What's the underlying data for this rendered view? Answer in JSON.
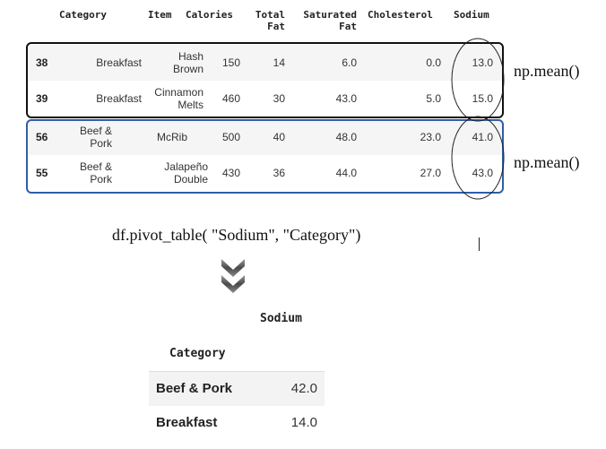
{
  "table": {
    "columns": [
      "Category",
      "Item",
      "Calories",
      "Total Fat",
      "Saturated Fat",
      "Cholesterol",
      "Sodium"
    ],
    "header_lines": {
      "category": "Category",
      "item": "Item",
      "calories": "Calories",
      "total_fat": [
        "Total",
        "Fat"
      ],
      "saturated_fat": [
        "Saturated",
        "Fat"
      ],
      "cholesterol": "Cholesterol",
      "sodium": "Sodium"
    },
    "rows": [
      {
        "index": "38",
        "category": [
          "Breakfast"
        ],
        "item": [
          "Hash",
          "Brown"
        ],
        "calories": "150",
        "total_fat": "14",
        "saturated_fat": "6.0",
        "cholesterol": "0.0",
        "sodium": "13.0"
      },
      {
        "index": "39",
        "category": [
          "Breakfast"
        ],
        "item": [
          "Cinnamon",
          "Melts"
        ],
        "calories": "460",
        "total_fat": "30",
        "saturated_fat": "43.0",
        "cholesterol": "5.0",
        "sodium": "15.0"
      },
      {
        "index": "56",
        "category": [
          "Beef &",
          "Pork"
        ],
        "item": [
          "McRib"
        ],
        "calories": "500",
        "total_fat": "40",
        "saturated_fat": "48.0",
        "cholesterol": "23.0",
        "sodium": "41.0"
      },
      {
        "index": "55",
        "category": [
          "Beef &",
          "Pork"
        ],
        "item": [
          "Jalapeño",
          "Double"
        ],
        "calories": "430",
        "total_fat": "36",
        "saturated_fat": "44.0",
        "cholesterol": "27.0",
        "sodium": "43.0"
      }
    ]
  },
  "groups": [
    {
      "rows": [
        "38",
        "39"
      ],
      "annotation": "np.mean()",
      "border_color": "#111111"
    },
    {
      "rows": [
        "56",
        "55"
      ],
      "annotation": "np.mean()",
      "border_color": "#2f5ea8"
    }
  ],
  "code": "df.pivot_table( \"Sodium\", \"Category\")",
  "arrow_icon": "double-chevron-down-icon",
  "pivot": {
    "value_header": "Sodium",
    "index_header": "Category",
    "rows": [
      {
        "label": "Beef & Pork",
        "value": "42.0"
      },
      {
        "label": "Breakfast",
        "value": "14.0"
      }
    ]
  }
}
